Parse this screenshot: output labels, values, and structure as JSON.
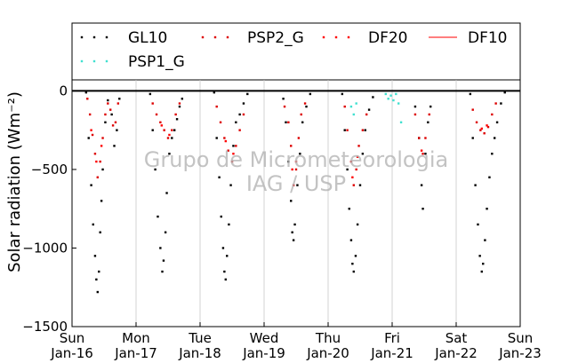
{
  "chart_data": {
    "type": "scatter",
    "ylabel": "Solar radiation (Wm⁻²)",
    "ylim": [
      -1500,
      0
    ],
    "yticks": [
      0,
      -500,
      -1000,
      -1500
    ],
    "xlim": [
      0,
      7
    ],
    "x_ticks": [
      {
        "day": 0,
        "label_top": "Sun",
        "label_bottom": "Jan-16"
      },
      {
        "day": 1,
        "label_top": "Mon",
        "label_bottom": "Jan-17"
      },
      {
        "day": 2,
        "label_top": "Tue",
        "label_bottom": "Jan-18"
      },
      {
        "day": 3,
        "label_top": "Wed",
        "label_bottom": "Jan-19"
      },
      {
        "day": 4,
        "label_top": "Thu",
        "label_bottom": "Jan-20"
      },
      {
        "day": 5,
        "label_top": "Fri",
        "label_bottom": "Jan-21"
      },
      {
        "day": 6,
        "label_top": "Sat",
        "label_bottom": "Jan-22"
      },
      {
        "day": 7,
        "label_top": "Sun",
        "label_bottom": "Jan-23"
      }
    ],
    "grid": "vertical",
    "legend_position": "top",
    "watermark": [
      "Grupo de Micrometeorologia",
      "IAG / USP"
    ],
    "series": [
      {
        "name": "GL10",
        "style": "dots",
        "color": "#000000",
        "points": [
          [
            0.22,
            -10
          ],
          [
            0.26,
            -300
          ],
          [
            0.3,
            -600
          ],
          [
            0.33,
            -850
          ],
          [
            0.36,
            -1050
          ],
          [
            0.38,
            -1200
          ],
          [
            0.4,
            -1280
          ],
          [
            0.42,
            -1150
          ],
          [
            0.44,
            -900
          ],
          [
            0.46,
            -700
          ],
          [
            0.48,
            -500
          ],
          [
            0.52,
            -200
          ],
          [
            0.56,
            -60
          ],
          [
            0.62,
            -150
          ],
          [
            0.66,
            -350
          ],
          [
            0.7,
            -250
          ],
          [
            0.74,
            -50
          ],
          [
            1.22,
            -20
          ],
          [
            1.26,
            -250
          ],
          [
            1.3,
            -500
          ],
          [
            1.34,
            -800
          ],
          [
            1.38,
            -1000
          ],
          [
            1.41,
            -1150
          ],
          [
            1.43,
            -1080
          ],
          [
            1.46,
            -900
          ],
          [
            1.48,
            -650
          ],
          [
            1.52,
            -400
          ],
          [
            1.56,
            -300
          ],
          [
            1.6,
            -250
          ],
          [
            1.64,
            -180
          ],
          [
            1.68,
            -100
          ],
          [
            1.72,
            -50
          ],
          [
            2.22,
            -10
          ],
          [
            2.26,
            -300
          ],
          [
            2.3,
            -550
          ],
          [
            2.33,
            -800
          ],
          [
            2.36,
            -1000
          ],
          [
            2.38,
            -1150
          ],
          [
            2.4,
            -1200
          ],
          [
            2.42,
            -1050
          ],
          [
            2.45,
            -850
          ],
          [
            2.48,
            -600
          ],
          [
            2.52,
            -350
          ],
          [
            2.56,
            -200
          ],
          [
            2.62,
            -150
          ],
          [
            2.68,
            -80
          ],
          [
            2.74,
            -20
          ],
          [
            3.3,
            -50
          ],
          [
            3.34,
            -200
          ],
          [
            3.38,
            -450
          ],
          [
            3.42,
            -700
          ],
          [
            3.44,
            -900
          ],
          [
            3.46,
            -950
          ],
          [
            3.48,
            -850
          ],
          [
            3.52,
            -600
          ],
          [
            3.56,
            -400
          ],
          [
            3.6,
            -200
          ],
          [
            3.66,
            -100
          ],
          [
            3.72,
            -20
          ],
          [
            4.22,
            -20
          ],
          [
            4.26,
            -250
          ],
          [
            4.3,
            -500
          ],
          [
            4.33,
            -750
          ],
          [
            4.36,
            -950
          ],
          [
            4.38,
            -1100
          ],
          [
            4.4,
            -1150
          ],
          [
            4.43,
            -1050
          ],
          [
            4.46,
            -850
          ],
          [
            4.5,
            -600
          ],
          [
            4.54,
            -400
          ],
          [
            4.58,
            -250
          ],
          [
            4.64,
            -120
          ],
          [
            4.7,
            -40
          ],
          [
            5.36,
            -100
          ],
          [
            5.42,
            -300
          ],
          [
            5.46,
            -600
          ],
          [
            5.48,
            -750
          ],
          [
            5.52,
            -400
          ],
          [
            5.56,
            -200
          ],
          [
            5.6,
            -100
          ],
          [
            6.22,
            -20
          ],
          [
            6.26,
            -300
          ],
          [
            6.3,
            -600
          ],
          [
            6.34,
            -850
          ],
          [
            6.37,
            -1050
          ],
          [
            6.4,
            -1150
          ],
          [
            6.42,
            -1100
          ],
          [
            6.45,
            -950
          ],
          [
            6.48,
            -750
          ],
          [
            6.52,
            -550
          ],
          [
            6.56,
            -400
          ],
          [
            6.6,
            -300
          ],
          [
            6.64,
            -200
          ],
          [
            6.7,
            -80
          ],
          [
            6.76,
            -10
          ]
        ]
      },
      {
        "name": "PSP2_G",
        "style": "dots",
        "color": "#dd0000",
        "points": [
          [
            0.24,
            -50
          ],
          [
            0.28,
            -150
          ],
          [
            0.32,
            -280
          ],
          [
            0.36,
            -400
          ],
          [
            0.4,
            -550
          ],
          [
            0.44,
            -450
          ],
          [
            0.48,
            -300
          ],
          [
            0.52,
            -150
          ],
          [
            0.56,
            -80
          ],
          [
            0.6,
            -120
          ],
          [
            0.64,
            -220
          ],
          [
            0.68,
            -200
          ],
          [
            0.72,
            -80
          ],
          [
            1.26,
            -80
          ],
          [
            1.32,
            -150
          ],
          [
            1.38,
            -200
          ],
          [
            1.44,
            -250
          ],
          [
            1.5,
            -300
          ],
          [
            1.56,
            -250
          ],
          [
            1.62,
            -150
          ],
          [
            1.68,
            -80
          ],
          [
            2.26,
            -100
          ],
          [
            2.32,
            -200
          ],
          [
            2.38,
            -300
          ],
          [
            2.44,
            -380
          ],
          [
            2.5,
            -450
          ],
          [
            2.56,
            -350
          ],
          [
            2.62,
            -250
          ],
          [
            2.68,
            -150
          ],
          [
            3.32,
            -100
          ],
          [
            3.38,
            -200
          ],
          [
            3.42,
            -350
          ],
          [
            3.46,
            -600
          ],
          [
            3.5,
            -500
          ],
          [
            3.54,
            -300
          ],
          [
            3.58,
            -150
          ],
          [
            3.64,
            -80
          ],
          [
            4.26,
            -100
          ],
          [
            4.3,
            -250
          ],
          [
            4.36,
            -450
          ],
          [
            4.4,
            -600
          ],
          [
            4.44,
            -500
          ],
          [
            4.48,
            -350
          ],
          [
            4.54,
            -250
          ],
          [
            4.6,
            -150
          ],
          [
            5.36,
            -150
          ],
          [
            5.42,
            -300
          ],
          [
            5.48,
            -400
          ],
          [
            5.52,
            -300
          ],
          [
            5.58,
            -150
          ],
          [
            6.26,
            -120
          ],
          [
            6.32,
            -200
          ],
          [
            6.38,
            -250
          ],
          [
            6.44,
            -270
          ],
          [
            6.5,
            -230
          ],
          [
            6.56,
            -150
          ],
          [
            6.62,
            -80
          ]
        ]
      },
      {
        "name": "DF20",
        "style": "dots",
        "color": "#ff0000",
        "points": [
          [
            0.3,
            -250
          ],
          [
            0.38,
            -450
          ],
          [
            0.46,
            -350
          ],
          [
            1.4,
            -220
          ],
          [
            1.52,
            -280
          ],
          [
            2.4,
            -320
          ],
          [
            2.52,
            -400
          ],
          [
            3.44,
            -500
          ],
          [
            3.5,
            -450
          ],
          [
            4.38,
            -550
          ],
          [
            4.46,
            -420
          ],
          [
            5.46,
            -380
          ],
          [
            6.4,
            -240
          ],
          [
            6.48,
            -220
          ]
        ]
      },
      {
        "name": "DF10",
        "style": "line",
        "color": "#ff3030",
        "points": [
          [
            0,
            0
          ],
          [
            7,
            0
          ]
        ]
      },
      {
        "name": "PSP1_G",
        "style": "dots",
        "color": "#40e0d0",
        "points": [
          [
            4.36,
            -100
          ],
          [
            4.4,
            -150
          ],
          [
            4.44,
            -80
          ],
          [
            4.9,
            -20
          ],
          [
            4.94,
            -50
          ],
          [
            4.98,
            -30
          ],
          [
            5.02,
            -60
          ],
          [
            5.06,
            -20
          ],
          [
            5.1,
            -80
          ],
          [
            5.14,
            -200
          ]
        ]
      }
    ]
  }
}
